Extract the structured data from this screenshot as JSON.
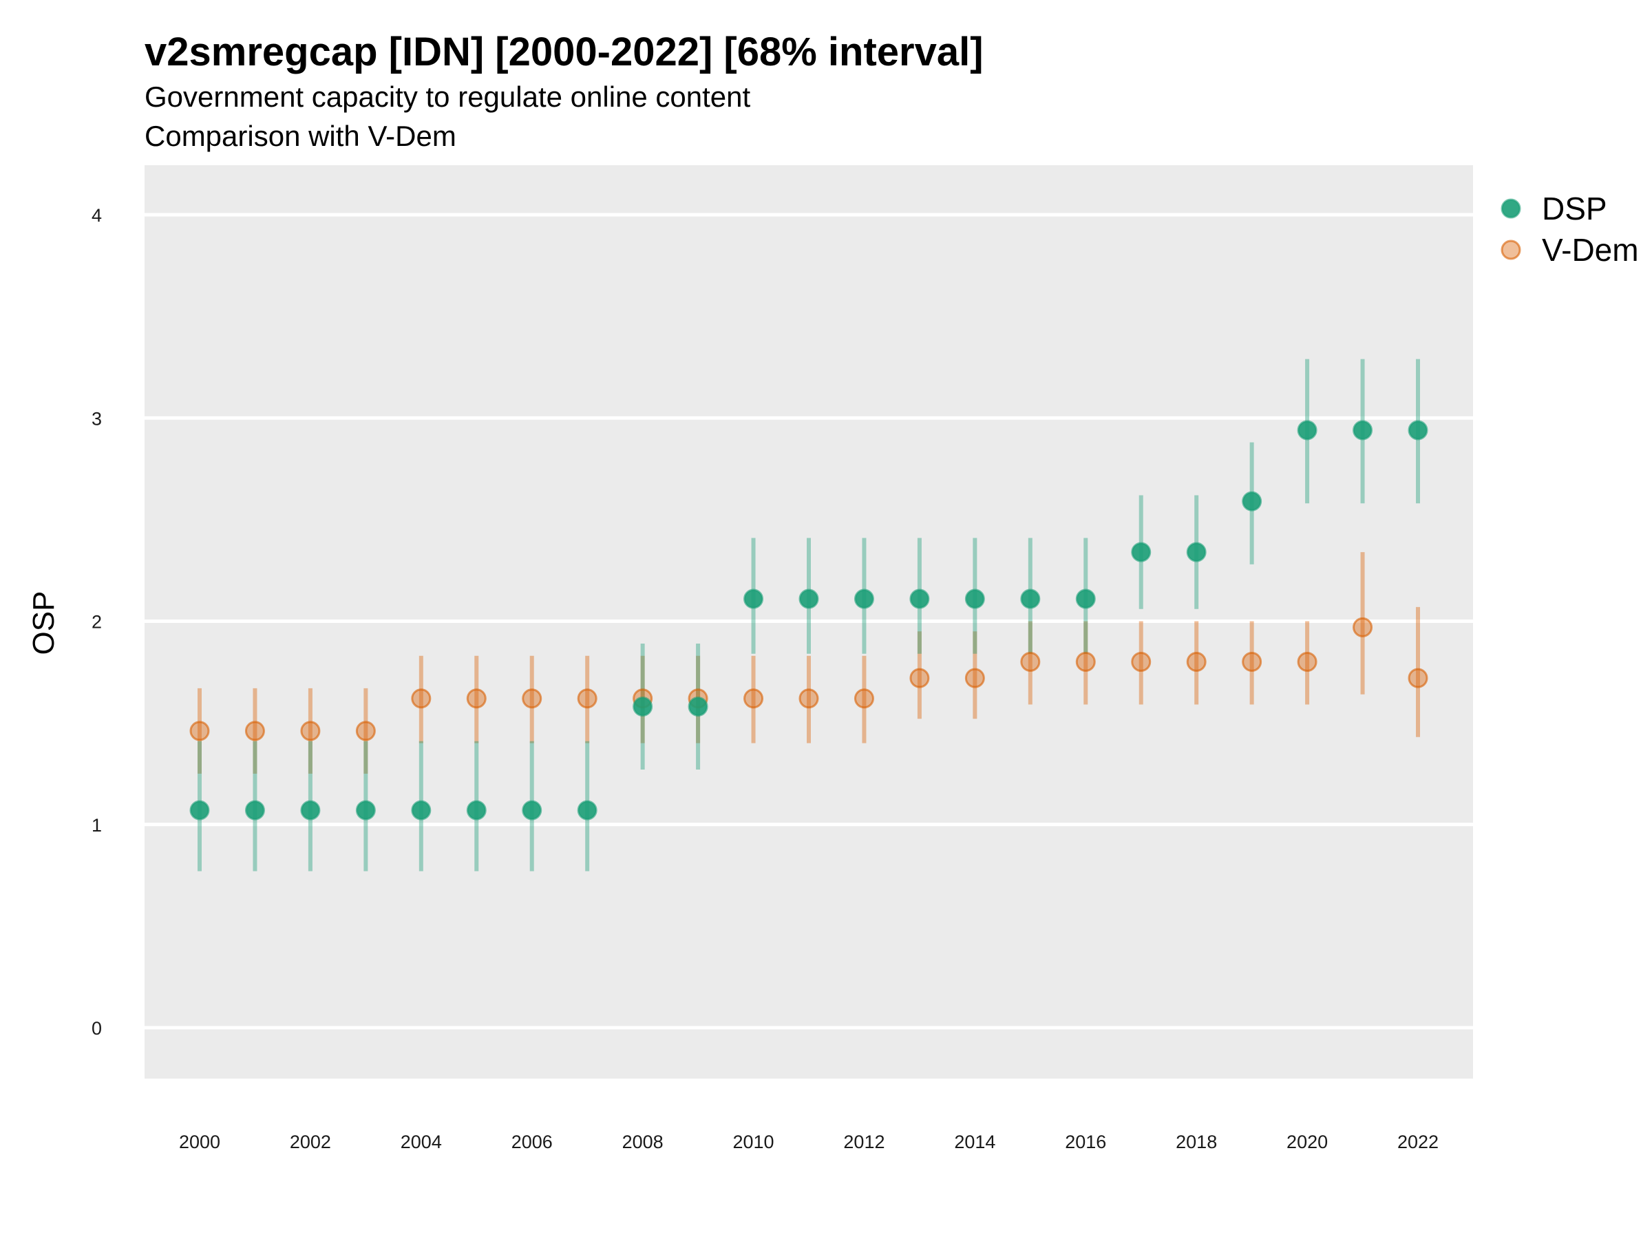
{
  "chart_data": {
    "type": "scatter",
    "title": "v2smregcap [IDN] [2000-2022] [68% interval]",
    "subtitle_lines": [
      "Government capacity to regulate online content",
      "Comparison with V-Dem"
    ],
    "ylabel": "OSP",
    "xlabel": "",
    "ylim": [
      -0.25,
      4.25
    ],
    "y_ticks": [
      "0",
      "1",
      "2",
      "3",
      "4"
    ],
    "x_tick_labels": [
      "2000",
      "2002",
      "2004",
      "2006",
      "2008",
      "2010",
      "2012",
      "2014",
      "2016",
      "2018",
      "2020",
      "2022"
    ],
    "x": [
      2000,
      2001,
      2002,
      2003,
      2004,
      2005,
      2006,
      2007,
      2008,
      2009,
      2010,
      2011,
      2012,
      2013,
      2014,
      2015,
      2016,
      2017,
      2018,
      2019,
      2020,
      2021,
      2022
    ],
    "grid": true,
    "legend_position": "top-right",
    "series": [
      {
        "name": "DSP",
        "color": "#1b9e77",
        "values": [
          1.07,
          1.07,
          1.07,
          1.07,
          1.07,
          1.07,
          1.07,
          1.07,
          1.58,
          1.58,
          2.11,
          2.11,
          2.11,
          2.11,
          2.11,
          2.11,
          2.11,
          2.34,
          2.34,
          2.59,
          2.94,
          2.94,
          2.94
        ],
        "lower": [
          0.77,
          0.77,
          0.77,
          0.77,
          0.77,
          0.77,
          0.77,
          0.77,
          1.27,
          1.27,
          1.84,
          1.84,
          1.84,
          1.84,
          1.84,
          1.84,
          1.84,
          2.06,
          2.06,
          2.28,
          2.58,
          2.58,
          2.58
        ],
        "upper": [
          1.41,
          1.41,
          1.41,
          1.41,
          1.41,
          1.41,
          1.41,
          1.41,
          1.89,
          1.89,
          2.41,
          2.41,
          2.41,
          2.41,
          2.41,
          2.41,
          2.41,
          2.62,
          2.62,
          2.88,
          3.29,
          3.29,
          3.29
        ]
      },
      {
        "name": "V-Dem",
        "color": "#d95f02",
        "values": [
          1.46,
          1.46,
          1.46,
          1.46,
          1.62,
          1.62,
          1.62,
          1.62,
          1.62,
          1.62,
          1.62,
          1.62,
          1.62,
          1.72,
          1.72,
          1.8,
          1.8,
          1.8,
          1.8,
          1.8,
          1.8,
          1.97,
          1.72
        ],
        "lower": [
          1.25,
          1.25,
          1.25,
          1.25,
          1.4,
          1.4,
          1.4,
          1.4,
          1.4,
          1.4,
          1.4,
          1.4,
          1.4,
          1.52,
          1.52,
          1.59,
          1.59,
          1.59,
          1.59,
          1.59,
          1.59,
          1.64,
          1.43
        ],
        "upper": [
          1.67,
          1.67,
          1.67,
          1.67,
          1.83,
          1.83,
          1.83,
          1.83,
          1.83,
          1.83,
          1.83,
          1.83,
          1.83,
          1.95,
          1.95,
          2.0,
          2.0,
          2.0,
          2.0,
          2.0,
          2.0,
          2.34,
          2.07
        ]
      }
    ]
  }
}
